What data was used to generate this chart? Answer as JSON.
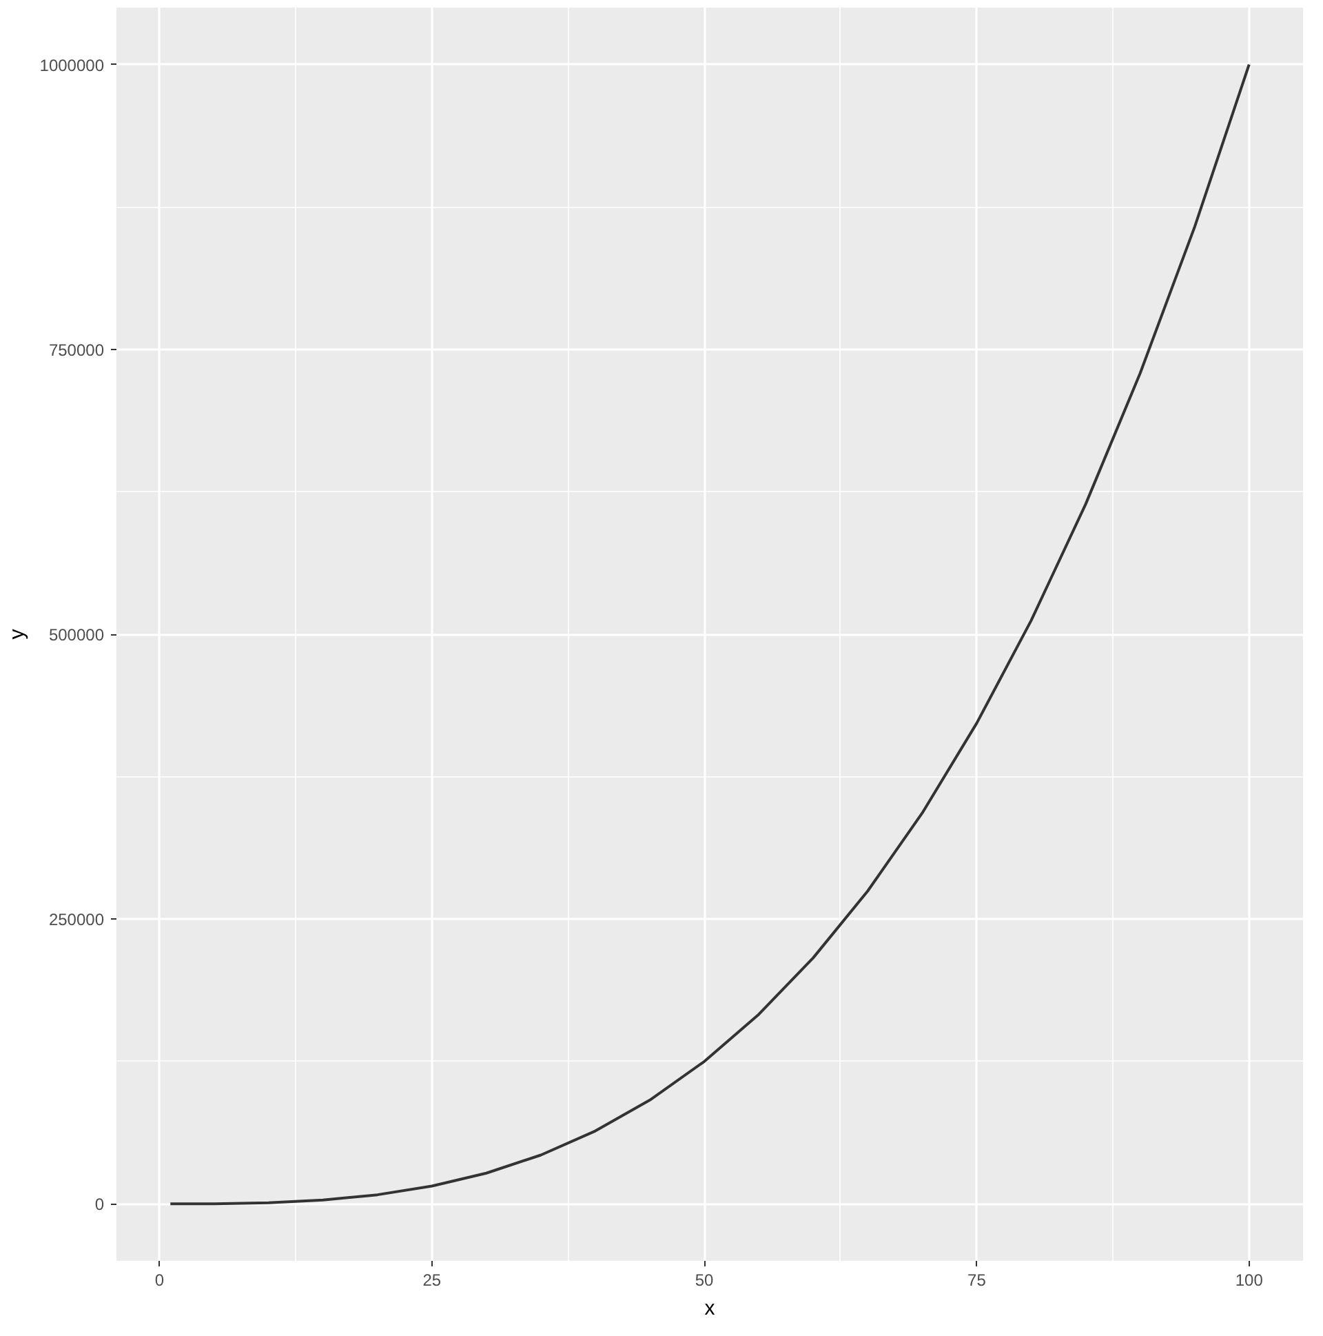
{
  "chart_data": {
    "type": "line",
    "xlabel": "x",
    "ylabel": "y",
    "x": [
      1,
      5,
      10,
      15,
      20,
      25,
      30,
      35,
      40,
      45,
      50,
      55,
      60,
      65,
      70,
      75,
      80,
      85,
      90,
      95,
      100
    ],
    "series": [
      {
        "color": "#333333",
        "values": [
          1,
          125,
          1000,
          3375,
          8000,
          15625,
          27000,
          42875,
          64000,
          91125,
          125000,
          166375,
          216000,
          274625,
          343000,
          421875,
          512000,
          614125,
          729000,
          857375,
          1000000
        ]
      }
    ],
    "xlim": [
      -3.95,
      104.95
    ],
    "ylim": [
      -50000,
      1050000
    ],
    "xticks": [
      0,
      25,
      50,
      75,
      100
    ],
    "yticks": [
      0,
      250000,
      500000,
      750000,
      1000000
    ],
    "grid": true,
    "line_style": "solid"
  }
}
